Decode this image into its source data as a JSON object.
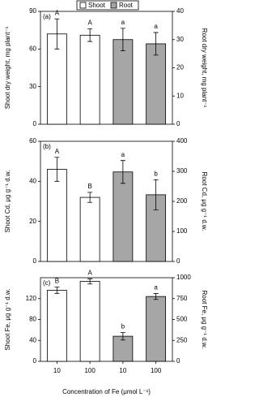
{
  "chart_data": [
    {
      "type": "bar",
      "panel_label": "(a)",
      "ylabel": "Shoot dry weight, mg plant⁻¹",
      "y2label": "Root dry weight, mg plant⁻¹",
      "ylim": [
        0,
        90
      ],
      "yticks": [
        0,
        30,
        60,
        90
      ],
      "y2lim": [
        0,
        40
      ],
      "y2ticks": [
        0,
        10,
        20,
        30,
        40
      ],
      "series": [
        {
          "name": "Shoot",
          "color": "#ffffff",
          "values": [
            72,
            71,
            null,
            null
          ],
          "errors": [
            12,
            5,
            null,
            null
          ],
          "labels": [
            "A",
            "A",
            null,
            null
          ]
        },
        {
          "name": "Root",
          "color": "#a6a6a6",
          "axis": "y2",
          "values": [
            null,
            null,
            30,
            28.5
          ],
          "errors": [
            null,
            null,
            4,
            4
          ],
          "labels": [
            null,
            null,
            "a",
            "a"
          ]
        }
      ]
    },
    {
      "type": "bar",
      "panel_label": "(b)",
      "ylabel": "Shoot Cd, μg g⁻¹ d.w.",
      "y2label": "Root Cd, μg g⁻¹ d.w.",
      "ylim": [
        0,
        60
      ],
      "yticks": [
        0,
        20,
        40,
        60
      ],
      "y2lim": [
        0,
        400
      ],
      "y2ticks": [
        0,
        100,
        200,
        300,
        400
      ],
      "series": [
        {
          "color": "#ffffff",
          "values": [
            46,
            32,
            null,
            null
          ],
          "errors": [
            6,
            2.5,
            null,
            null
          ],
          "labels": [
            "A",
            "B",
            null,
            null
          ]
        },
        {
          "color": "#a6a6a6",
          "axis": "y2",
          "values": [
            null,
            null,
            298,
            222
          ],
          "errors": [
            null,
            null,
            38,
            50
          ],
          "labels": [
            null,
            null,
            "a",
            "b"
          ]
        }
      ]
    },
    {
      "type": "bar",
      "panel_label": "(c)",
      "ylabel": "Shoot Fe, μg g⁻¹ d.w.",
      "y2label": "Root Fe, μg g⁻¹ d.w.",
      "xlabel": "Concentration of Fe (μmol L⁻¹)",
      "categories": [
        "10",
        "100",
        "10",
        "100"
      ],
      "ylim": [
        0,
        160
      ],
      "yticks": [
        0,
        40,
        80,
        120
      ],
      "y2lim": [
        0,
        1000
      ],
      "y2ticks": [
        0,
        250,
        500,
        750,
        1000
      ],
      "series": [
        {
          "color": "#ffffff",
          "values": [
            136,
            153,
            null,
            null
          ],
          "errors": [
            6,
            5,
            null,
            null
          ],
          "labels": [
            "B",
            "A",
            null,
            null
          ]
        },
        {
          "color": "#a6a6a6",
          "axis": "y2",
          "values": [
            null,
            null,
            300,
            775
          ],
          "errors": [
            null,
            null,
            45,
            35
          ],
          "labels": [
            null,
            null,
            "b",
            "a"
          ]
        }
      ]
    }
  ]
}
